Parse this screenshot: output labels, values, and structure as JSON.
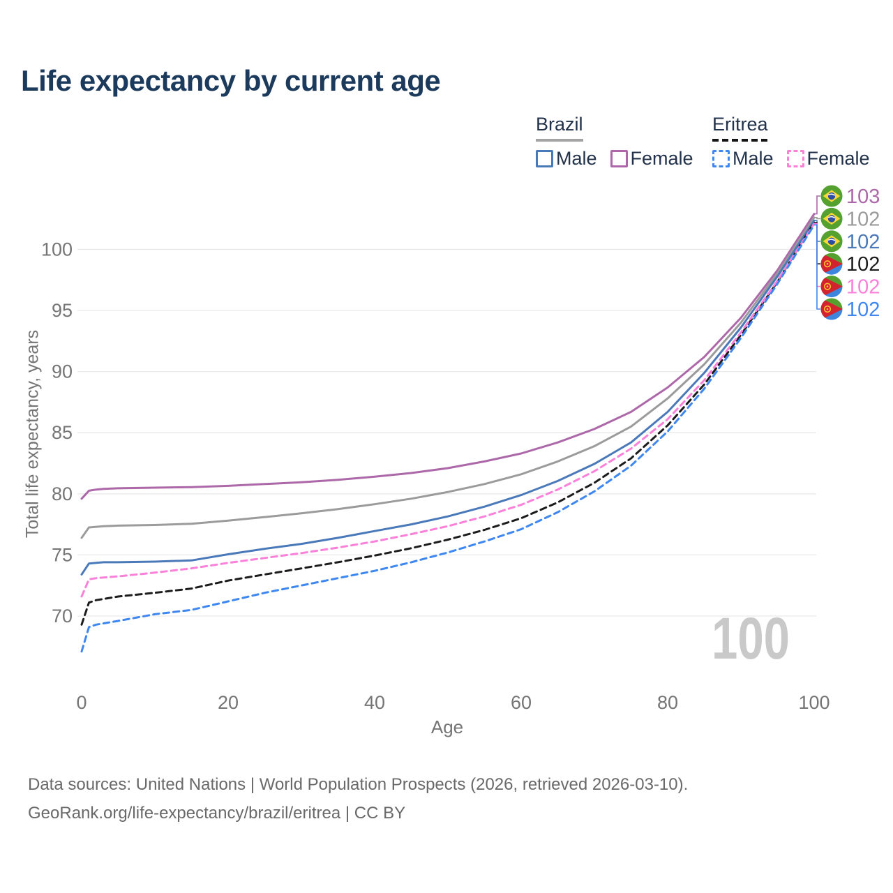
{
  "title": "Life expectancy by current age",
  "watermark": "100",
  "legend": {
    "groups": [
      {
        "label": "Brazil",
        "line_style": "solid",
        "underline_color": "#a3a3a3",
        "items": [
          {
            "label": "Male",
            "color": "#4a79ba",
            "dashed": false
          },
          {
            "label": "Female",
            "color": "#ac68a8",
            "dashed": false
          }
        ]
      },
      {
        "label": "Eritrea",
        "line_style": "dashed",
        "underline_color": "#151515",
        "items": [
          {
            "label": "Male",
            "color": "#3e87f0",
            "dashed": true
          },
          {
            "label": "Female",
            "color": "#fb80d9",
            "dashed": true
          }
        ]
      }
    ]
  },
  "axes": {
    "x": {
      "title": "Age",
      "ticks": [
        0,
        20,
        40,
        60,
        80,
        100
      ]
    },
    "y": {
      "title": "Total life expectancy, years",
      "ticks": [
        70,
        75,
        80,
        85,
        90,
        95,
        100
      ]
    }
  },
  "footer": {
    "line1": "Data sources: United Nations | World Population Prospects (2026, retrieved 2026-03-10).",
    "line2": "GeoRank.org/life-expectancy/brazil/eritrea | CC BY"
  },
  "chart_data": {
    "type": "line",
    "title": "Life expectancy by current age",
    "xlabel": "Age",
    "ylabel": "Total life expectancy, years",
    "xlim": [
      0,
      100
    ],
    "ylim": [
      65.5,
      104
    ],
    "grid": true,
    "legend_position": "top-right",
    "x": [
      0,
      1,
      2,
      3,
      5,
      10,
      15,
      20,
      25,
      30,
      35,
      40,
      45,
      50,
      55,
      60,
      65,
      70,
      75,
      80,
      85,
      90,
      95,
      100
    ],
    "series": [
      {
        "name": "Brazil Female",
        "flag": "brazil",
        "color": "#ac68a8",
        "dash": false,
        "end_label": "103",
        "values": [
          79.6,
          80.25,
          80.35,
          80.4,
          80.45,
          80.5,
          80.55,
          80.65,
          80.8,
          80.95,
          81.15,
          81.4,
          81.7,
          82.1,
          82.65,
          83.3,
          84.2,
          85.3,
          86.7,
          88.7,
          91.2,
          94.4,
          98.3,
          102.9
        ]
      },
      {
        "name": "Brazil Total",
        "flag": "brazil",
        "color": "#9b9b9b",
        "dash": false,
        "end_label": "102",
        "values": [
          76.4,
          77.25,
          77.3,
          77.35,
          77.4,
          77.45,
          77.55,
          77.8,
          78.1,
          78.4,
          78.75,
          79.15,
          79.6,
          80.15,
          80.8,
          81.6,
          82.65,
          83.9,
          85.5,
          87.8,
          90.6,
          94.0,
          98.05,
          102.6
        ]
      },
      {
        "name": "Brazil Male",
        "flag": "brazil",
        "color": "#4a79ba",
        "dash": false,
        "end_label": "102",
        "values": [
          73.4,
          74.3,
          74.35,
          74.4,
          74.4,
          74.45,
          74.55,
          75.05,
          75.5,
          75.9,
          76.4,
          76.95,
          77.5,
          78.15,
          78.95,
          79.9,
          81.05,
          82.45,
          84.2,
          86.7,
          89.9,
          93.6,
          97.8,
          102.35
        ]
      },
      {
        "name": "Eritrea Total",
        "flag": "eritrea",
        "color": "#1c1c1c",
        "dash": true,
        "end_label": "102",
        "values": [
          69.3,
          71.1,
          71.3,
          71.4,
          71.6,
          71.9,
          72.25,
          72.9,
          73.4,
          73.9,
          74.4,
          74.95,
          75.55,
          76.25,
          77.05,
          78.0,
          79.3,
          80.9,
          82.9,
          85.6,
          88.95,
          93.0,
          97.35,
          102.2
        ]
      },
      {
        "name": "Eritrea Female",
        "flag": "eritrea",
        "color": "#fb80d9",
        "dash": true,
        "end_label": "102",
        "values": [
          71.6,
          73.0,
          73.1,
          73.15,
          73.25,
          73.55,
          73.9,
          74.35,
          74.75,
          75.15,
          75.6,
          76.1,
          76.7,
          77.35,
          78.15,
          79.1,
          80.35,
          81.85,
          83.7,
          86.1,
          89.3,
          93.2,
          97.45,
          102.1
        ]
      },
      {
        "name": "Eritrea Male",
        "flag": "eritrea",
        "color": "#3e87f0",
        "dash": true,
        "end_label": "102",
        "values": [
          67.1,
          69.1,
          69.3,
          69.4,
          69.6,
          70.15,
          70.5,
          71.2,
          71.9,
          72.5,
          73.1,
          73.7,
          74.4,
          75.2,
          76.1,
          77.1,
          78.5,
          80.2,
          82.3,
          85.1,
          88.6,
          92.75,
          97.2,
          102.0
        ]
      }
    ]
  }
}
